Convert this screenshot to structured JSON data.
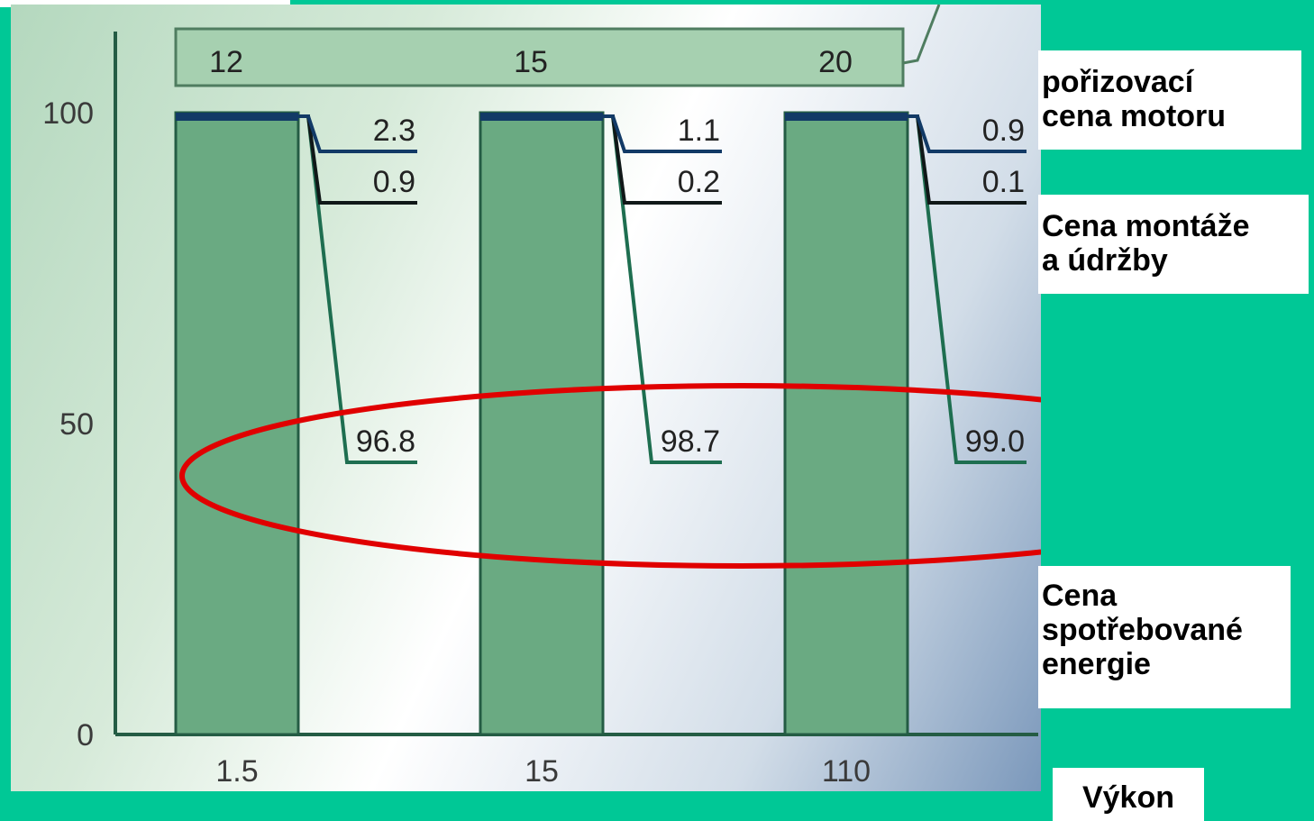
{
  "chart_data": {
    "type": "bar",
    "y_ticks": [
      "0",
      "50",
      "100"
    ],
    "ylim": [
      0,
      100
    ],
    "categories": [
      "1.5",
      "15",
      "110"
    ],
    "top_values": [
      "12",
      "15",
      "20"
    ],
    "series": [
      {
        "values": [
          96.8,
          98.7,
          99.0
        ],
        "labels": [
          "96.8",
          "98.7",
          "99.0"
        ],
        "color": "#1e6e50"
      },
      {
        "values": [
          0.9,
          0.2,
          0.1
        ],
        "labels": [
          "0.9",
          "0.2",
          "0.1"
        ],
        "color": "#101818"
      },
      {
        "values": [
          2.3,
          1.1,
          0.9
        ],
        "labels": [
          "2.3",
          "1.1",
          "0.9"
        ],
        "color": "#123a66"
      }
    ],
    "bar_color": "#6aaa82",
    "highlight_color": "#e00000",
    "legend": {
      "cost_motor": "pořizovací\ncena motoru",
      "cost_install": "Cena montáže\na údržby",
      "cost_energy": "Cena\nspotřebované\nenergie",
      "power": "Výkon"
    }
  }
}
